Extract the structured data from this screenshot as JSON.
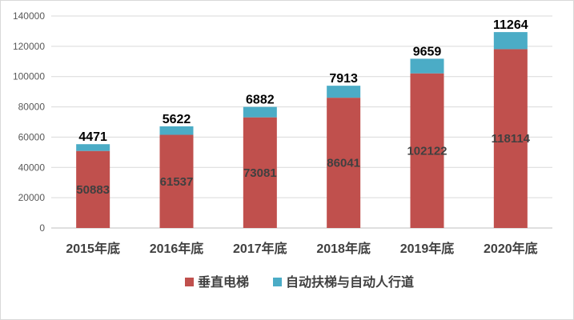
{
  "chart_data": {
    "type": "bar",
    "stacked": true,
    "categories": [
      "2015年底",
      "2016年底",
      "2017年底",
      "2018年底",
      "2019年底",
      "2020年底"
    ],
    "series": [
      {
        "name": "垂直电梯",
        "values": [
          50883,
          61537,
          73081,
          86041,
          102122,
          118114
        ],
        "color": "#c0504d"
      },
      {
        "name": "自动扶梯与自动人行道",
        "values": [
          4471,
          5622,
          6882,
          7913,
          9659,
          11264
        ],
        "color": "#4bacc6"
      }
    ],
    "yticks": [
      0,
      20000,
      40000,
      60000,
      80000,
      100000,
      120000,
      140000
    ],
    "ylim": [
      0,
      140000
    ],
    "grid": true,
    "legend_position": "bottom",
    "title": "",
    "xlabel": "",
    "ylabel": ""
  }
}
